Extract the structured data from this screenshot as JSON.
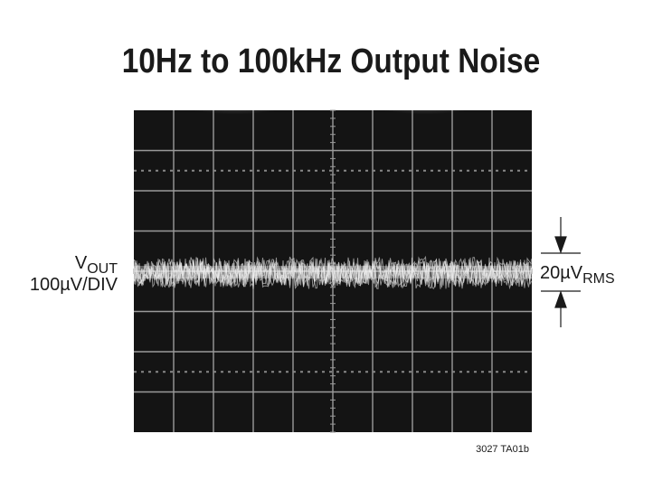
{
  "title": "10Hz to 100kHz Output Noise",
  "left_label": {
    "symbol": "V",
    "subscript": "OUT",
    "scale": "100µV/DIV"
  },
  "right_label": {
    "value": "20µV",
    "subscript": "RMS"
  },
  "figure_code": "3027 TA01b"
}
